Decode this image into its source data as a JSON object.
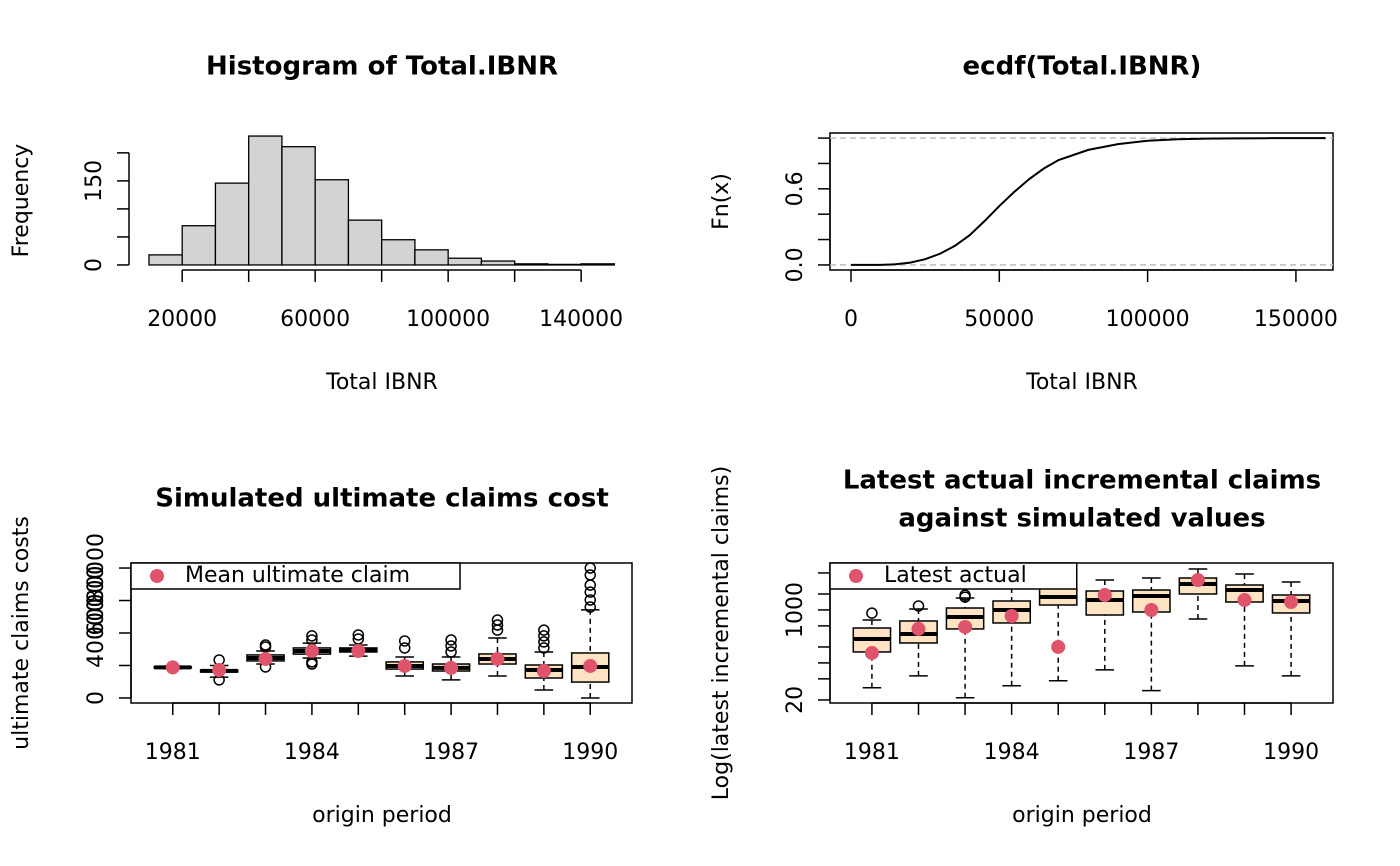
{
  "chart_data": [
    {
      "type": "histogram",
      "title": "Histogram of Total.IBNR",
      "xlabel": "Total IBNR",
      "ylabel": "Frequency",
      "bins": [
        10000,
        20000,
        30000,
        40000,
        50000,
        60000,
        70000,
        80000,
        90000,
        100000,
        110000,
        120000,
        130000,
        140000,
        150000
      ],
      "counts": [
        18,
        70,
        146,
        230,
        211,
        152,
        80,
        45,
        27,
        12,
        7,
        2,
        1,
        2
      ],
      "color": "#d3d3d3",
      "xlim": [
        4000,
        155300
      ],
      "ylim": [
        -9,
        239
      ],
      "xticks": [
        20000,
        60000,
        100000,
        140000
      ],
      "xtick_marks": [
        20000,
        40000,
        60000,
        80000,
        100000,
        120000,
        140000
      ],
      "yticks": [
        0,
        150
      ],
      "ytick_marks": [
        0,
        50,
        100,
        150,
        200
      ]
    },
    {
      "type": "ecdf",
      "title": "ecdf(Total.IBNR)",
      "xlabel": "Total IBNR",
      "ylabel": "Fn(x)",
      "x": [
        0,
        10000,
        15000,
        20000,
        25000,
        30000,
        35000,
        40000,
        45000,
        50000,
        55000,
        60000,
        65000,
        70000,
        80000,
        90000,
        100000,
        110000,
        120000,
        130000,
        140000,
        150000,
        160000
      ],
      "values": [
        0,
        0,
        0.005,
        0.018,
        0.045,
        0.088,
        0.15,
        0.234,
        0.345,
        0.464,
        0.575,
        0.675,
        0.76,
        0.827,
        0.907,
        0.952,
        0.979,
        0.991,
        0.996,
        0.998,
        0.999,
        1,
        1
      ],
      "color": "#000000",
      "hlines": [
        0,
        1
      ],
      "frame": true,
      "xlim": [
        -7080,
        162500
      ],
      "ylim": [
        -0.04,
        1.04
      ],
      "xticks": [
        0,
        50000,
        100000,
        150000
      ],
      "yticks": [
        {
          "value": 0,
          "label": "0.0"
        },
        {
          "value": 0.6,
          "label": "0.6"
        }
      ],
      "ytick_marks": [
        0,
        0.2,
        0.4,
        0.6,
        0.8,
        1
      ]
    },
    {
      "type": "box",
      "title": "Simulated ultimate claims cost",
      "xlabel": "origin period",
      "ylabel": "ultimate claims costs",
      "categories": [
        "1981",
        null,
        null,
        "1984",
        null,
        null,
        "1987",
        null,
        null,
        "1990"
      ],
      "min": [
        18000,
        12800,
        20900,
        24600,
        25800,
        13500,
        11100,
        13500,
        4900,
        0
      ],
      "q1": [
        18600,
        16000,
        22800,
        27000,
        28300,
        17800,
        16600,
        20900,
        12300,
        9800
      ],
      "median": [
        18800,
        16700,
        24600,
        28900,
        29500,
        19700,
        18500,
        24000,
        17200,
        19100
      ],
      "q3": [
        19100,
        17200,
        26500,
        30800,
        30800,
        22200,
        20900,
        27100,
        20300,
        27700
      ],
      "max": [
        19600,
        20000,
        28900,
        33800,
        32600,
        25200,
        25200,
        36900,
        28300,
        54200
      ],
      "outliers": [
        [],
        [
          11100,
          23400
        ],
        [
          19100,
          31400,
          32600
        ],
        [
          20900,
          22200,
          35700,
          38200
        ],
        [
          36300,
          38800
        ],
        [
          30800,
          35100
        ],
        [
          28300,
          32000,
          35700
        ],
        [
          41800,
          44900,
          48000
        ],
        [
          30800,
          34500,
          38200,
          41800
        ],
        [
          56000,
          60300,
          65200,
          69500,
          75700,
          80000
        ]
      ],
      "box_color": "#ffe4c4",
      "series": [
        {
          "name": "Mean ultimate claim",
          "color": "#df536b",
          "values": [
            18834,
            17200,
            24000,
            28900,
            28900,
            19700,
            18500,
            24000,
            16600,
            19700
          ]
        }
      ],
      "legend": "top-left",
      "frame": true,
      "ylim": [
        -3100,
        83100
      ],
      "yticks": [
        0,
        40000,
        60000,
        80000
      ],
      "ytick_marks": [
        0,
        20000,
        40000,
        60000,
        80000
      ]
    },
    {
      "type": "box",
      "title": [
        "Latest actual incremental claims",
        "against simulated values"
      ],
      "xlabel": "origin period",
      "ylabel": "Log(latest incremental claims)",
      "categories": [
        "1981",
        null,
        null,
        "1984",
        null,
        null,
        "1987",
        null,
        null,
        "1990"
      ],
      "min": [
        34,
        57,
        22,
        37,
        46,
        74,
        30,
        675,
        88,
        57
      ],
      "q1": [
        161,
        238,
        438,
        568,
        1240,
        803,
        914,
        2000,
        1413,
        877
      ],
      "median": [
        283,
        352,
        736,
        998,
        1754,
        1541,
        1833,
        3090,
        2377,
        1476
      ],
      "q3": [
        456,
        619,
        1088,
        1476,
        2595,
        2280,
        2377,
        4010,
        2958,
        1915
      ],
      "max": [
        646,
        1042,
        1682,
        2595,
        3836,
        3672,
        4010,
        5930,
        4766,
        3365
      ],
      "outliers": [
        [
          872
        ],
        [
          1188
        ],
        [
          1750,
          1900
        ],
        [],
        [
          3990
        ],
        [],
        [],
        [],
        [],
        []
      ],
      "box_color": "#ffe4c4",
      "series": [
        {
          "name": "Latest actual",
          "color": "#df536b",
          "values": [
            154,
            438,
            477,
            769,
            200,
            1915,
            998,
            3672,
            1541,
            1413
          ]
        }
      ],
      "legend": "top-left",
      "frame": true,
      "ylog": true,
      "ylim": [
        17.5,
        7700
      ],
      "yticks": [
        20,
        1000
      ],
      "ytick_marks": [
        20,
        50,
        100,
        200,
        500,
        1000,
        2000,
        5000
      ]
    }
  ]
}
